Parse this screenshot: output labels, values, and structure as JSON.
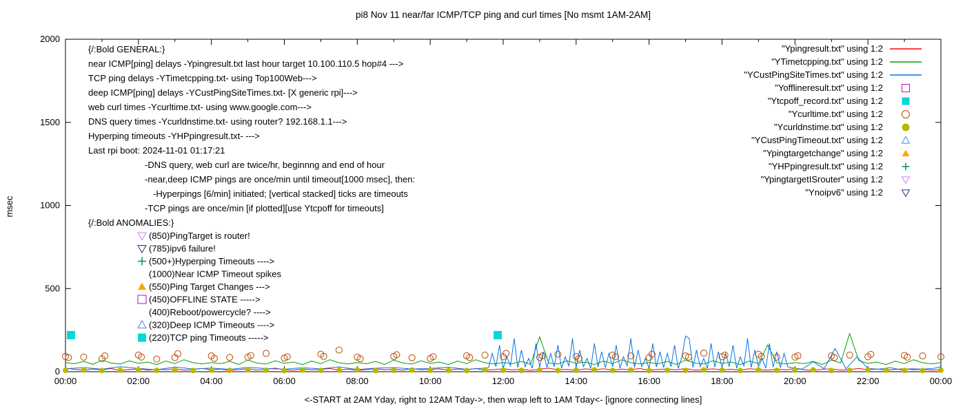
{
  "chart_data": {
    "type": "line",
    "title": "pi8 Nov 11  near/far ICMP/TCP ping and curl times [No msmt 1AM-2AM]",
    "xlabel": "<-START at 2AM Yday, right to 12AM Tday->, then wrap left to 1AM Tday<- [ignore connecting lines]",
    "ylabel": "msec",
    "xlim": [
      0,
      24
    ],
    "ylim": [
      0,
      2000
    ],
    "grid": false,
    "legend_position": "outside-top-right",
    "yticks": [
      0,
      500,
      1000,
      1500,
      2000
    ],
    "xticks": [
      "00:00",
      "02:00",
      "04:00",
      "06:00",
      "08:00",
      "10:00",
      "12:00",
      "14:00",
      "16:00",
      "18:00",
      "20:00",
      "22:00",
      "00:00"
    ],
    "series": [
      {
        "name": "Ypingresult.txt",
        "style": "line",
        "color": "#ff0000",
        "segments": [
          {
            "x0": 0,
            "dx": 0.25,
            "y": [
              22,
              14,
              9,
              16,
              11,
              19,
              8,
              13,
              17,
              10,
              15,
              12,
              18,
              9,
              14,
              20,
              11,
              16,
              8,
              13,
              18,
              10,
              15,
              21,
              12,
              9,
              17,
              11,
              14,
              19,
              10,
              16,
              8,
              13,
              18,
              12,
              15,
              9,
              20,
              11,
              14,
              17,
              10,
              16,
              12,
              19,
              9,
              13,
              18,
              11,
              15,
              8,
              16,
              21,
              12,
              14,
              9,
              17,
              11,
              18,
              10,
              15,
              13,
              19,
              8,
              14,
              16,
              11,
              20,
              9,
              13,
              17,
              12,
              15,
              10,
              18,
              14,
              9,
              16,
              11,
              19,
              12,
              8,
              15,
              17,
              10,
              13,
              20,
              11,
              16,
              9,
              14,
              18,
              12,
              15,
              10,
              13
            ]
          }
        ]
      },
      {
        "name": "YTimetcpping.txt",
        "style": "line",
        "color": "#00a000",
        "segments": [
          {
            "x0": 0,
            "dx": 0.25,
            "y": [
              55,
              48,
              62,
              44,
              70,
              52,
              46,
              66,
              50,
              58,
              43,
              64,
              49,
              72,
              54,
              47,
              55,
              48,
              62,
              44,
              70,
              52,
              46,
              66,
              50,
              58,
              43,
              64,
              49,
              72,
              54,
              47,
              55,
              48,
              62,
              44,
              70,
              52,
              46,
              66,
              50,
              58,
              43,
              64,
              49,
              72,
              54,
              47,
              55,
              48,
              62,
              44,
              210,
              52,
              46,
              66,
              50,
              58,
              43,
              64,
              49,
              72,
              54,
              47,
              55,
              48,
              62,
              44,
              70,
              52,
              46,
              66,
              50,
              58,
              43,
              64,
              49,
              160,
              54,
              47,
              55,
              48,
              62,
              44,
              70,
              52,
              230,
              66,
              50,
              58,
              43,
              64,
              49,
              72,
              54,
              47,
              55
            ]
          }
        ]
      },
      {
        "name": "YCustPingSiteTimes.txt",
        "style": "line",
        "color": "#0073e6",
        "segments": [
          {
            "x0": 0,
            "dx": 0.5,
            "y": [
              18,
              25,
              15,
              30,
              20,
              12,
              28,
              16,
              22,
              14,
              26,
              19,
              15,
              24,
              17,
              29,
              13,
              21,
              25,
              16,
              20,
              27,
              14,
              22
            ]
          },
          {
            "x0": 11.6,
            "dx": 0.1,
            "y": [
              25,
              110,
              30,
              160,
              20,
              90,
              35,
              200,
              25,
              130,
              30,
              80,
              20,
              170,
              28,
              120,
              25,
              110,
              30,
              160,
              20,
              90,
              35,
              200,
              25,
              130,
              30,
              80,
              20,
              170,
              28,
              120,
              25,
              110,
              30,
              160,
              20,
              90,
              35,
              200,
              25,
              130,
              30,
              80,
              20,
              170,
              28,
              120,
              25,
              110,
              30,
              160,
              20,
              90,
              215,
              200,
              25,
              130,
              30,
              80,
              20,
              170,
              28,
              120,
              25,
              110,
              30,
              160,
              20,
              90,
              35,
              200,
              25,
              130,
              30,
              80,
              20,
              170,
              28,
              120,
              25,
              110,
              30
            ]
          },
          {
            "x0": 19.9,
            "dx": 0.3,
            "y": [
              25,
              15,
              60,
              18,
              140,
              18,
              90,
              20,
              15,
              25,
              12,
              18,
              15,
              20
            ]
          }
        ],
        "points": [
          [
            24,
            30
          ]
        ]
      },
      {
        "name": "Yofflineresult.txt",
        "style": "square-open",
        "color": "#c800c8",
        "msize": 5,
        "points": []
      },
      {
        "name": "Ytcpoff_record.txt",
        "style": "square-filled",
        "color": "#00d9d9",
        "msize": 6,
        "points": [
          [
            0.15,
            220
          ],
          [
            11.85,
            220
          ]
        ]
      },
      {
        "name": "Ycurltime.txt",
        "style": "circle-open",
        "color": "#b84800",
        "msize": 4.5,
        "points": [
          [
            0,
            92
          ],
          [
            0.08,
            85
          ],
          [
            0.5,
            88
          ],
          [
            1,
            78
          ],
          [
            1.08,
            95
          ],
          [
            2,
            100
          ],
          [
            2.08,
            88
          ],
          [
            2.5,
            76
          ],
          [
            3,
            85
          ],
          [
            3.08,
            108
          ],
          [
            4,
            95
          ],
          [
            4.08,
            80
          ],
          [
            4.5,
            86
          ],
          [
            5,
            88
          ],
          [
            5.08,
            97
          ],
          [
            5.5,
            110
          ],
          [
            6,
            82
          ],
          [
            6.08,
            90
          ],
          [
            7,
            105
          ],
          [
            7.08,
            92
          ],
          [
            7.5,
            130
          ],
          [
            8,
            88
          ],
          [
            8.08,
            78
          ],
          [
            9,
            92
          ],
          [
            9.08,
            102
          ],
          [
            9.5,
            84
          ],
          [
            10,
            80
          ],
          [
            10.08,
            90
          ],
          [
            11,
            96
          ],
          [
            11.08,
            85
          ],
          [
            11.5,
            100
          ],
          [
            12,
            90
          ],
          [
            12.08,
            110
          ],
          [
            13,
            86
          ],
          [
            13.08,
            95
          ],
          [
            13.5,
            105
          ],
          [
            14,
            92
          ],
          [
            14.08,
            80
          ],
          [
            15,
            100
          ],
          [
            15.08,
            90
          ],
          [
            15.5,
            95
          ],
          [
            16,
            85
          ],
          [
            16.08,
            105
          ],
          [
            17,
            95
          ],
          [
            17.08,
            88
          ],
          [
            17.5,
            112
          ],
          [
            18,
            90
          ],
          [
            18.08,
            100
          ],
          [
            19,
            105
          ],
          [
            19.08,
            92
          ],
          [
            19.5,
            88
          ],
          [
            20,
            88
          ],
          [
            20.08,
            96
          ],
          [
            21,
            95
          ],
          [
            21.08,
            85
          ],
          [
            21.5,
            100
          ],
          [
            22,
            90
          ],
          [
            22.08,
            104
          ],
          [
            23,
            98
          ],
          [
            23.08,
            88
          ],
          [
            23.5,
            95
          ],
          [
            24,
            90
          ]
        ]
      },
      {
        "name": "Ycurldnstime.txt",
        "style": "circle-filled",
        "color": "#b8b800",
        "msize": 4,
        "segments": [
          {
            "x0": 0,
            "dx": 0.5,
            "y": [
              8,
              10,
              7,
              9,
              11,
              8,
              10,
              7,
              9,
              8,
              11,
              9,
              7,
              10,
              8,
              9,
              11,
              7,
              8,
              10,
              9,
              8,
              7,
              11,
              9,
              8,
              10,
              7,
              9,
              11,
              8,
              10,
              7,
              9,
              8,
              11,
              9,
              7,
              10,
              8,
              9,
              11,
              7,
              8,
              10,
              9,
              8,
              7,
              9
            ]
          }
        ]
      },
      {
        "name": "YCustPingTimeout.txt",
        "style": "triangle-up-open",
        "color": "#4488ee",
        "msize": 5,
        "points": []
      },
      {
        "name": "Ypingtargetchange",
        "style": "triangle-up-filled",
        "color": "#ffa500",
        "msize": 6,
        "points": []
      },
      {
        "name": "YHPpingresult.txt",
        "style": "plus",
        "color": "#009060",
        "msize": 5,
        "points": []
      },
      {
        "name": "YpingtargetISrouter",
        "style": "triangle-down-open",
        "color": "#cc80ff",
        "msize": 6,
        "points": []
      },
      {
        "name": "Ynoipv6",
        "style": "triangle-down-open",
        "color": "#203090",
        "msize": 6,
        "points": []
      }
    ]
  },
  "legend": [
    {
      "label": "\"Ypingresult.txt\" using 1:2",
      "series": 0
    },
    {
      "label": "\"YTimetcpping.txt\" using 1:2",
      "series": 1
    },
    {
      "label": "\"YCustPingSiteTimes.txt\" using 1:2",
      "series": 2
    },
    {
      "label": "\"Yofflineresult.txt\" using 1:2",
      "series": 3
    },
    {
      "label": "\"Ytcpoff_record.txt\" using 1:2",
      "series": 4
    },
    {
      "label": "\"Ycurltime.txt\" using 1:2",
      "series": 5
    },
    {
      "label": "\"Ycurldnstime.txt\" using 1:2",
      "series": 6
    },
    {
      "label": "\"YCustPingTimeout.txt\" using 1:2",
      "series": 7
    },
    {
      "label": "\"Ypingtargetchange\" using 1:2",
      "series": 8
    },
    {
      "label": "\"YHPpingresult.txt\" using 1:2",
      "series": 9
    },
    {
      "label": "\"YpingtargetISrouter\" using 1:2",
      "series": 10
    },
    {
      "label": "\"Ynoipv6\" using 1:2",
      "series": 11
    }
  ],
  "notes": {
    "general": [
      {
        "text": "{/:Bold GENERAL:}",
        "indent": 0
      },
      {
        "text": "near ICMP[ping] delays -Ypingresult.txt last hour target 10.100.110.5 hop#4 --->",
        "indent": 0
      },
      {
        "text": "TCP ping delays -YTimetcpping.txt- using Top100Web--->",
        "indent": 0
      },
      {
        "text": "deep ICMP[ping] delays -YCustPingSiteTimes.txt- [X generic rpi]--->",
        "indent": 0
      },
      {
        "text": "web curl times -Ycurltime.txt- using www.google.com--->",
        "indent": 0
      },
      {
        "text": "DNS query times -Ycurldnstime.txt- using router? 192.168.1.1--->",
        "indent": 0
      },
      {
        "text": "Hyperping timeouts -YHPpingresult.txt- --->",
        "indent": 0
      },
      {
        "text": "Last rpi boot: 2024-11-01 01:17:21",
        "indent": 0
      },
      {
        "text": "-DNS query, web curl are twice/hr, beginnng and end of hour",
        "indent": 82
      },
      {
        "text": "-near,deep ICMP pings are once/min until timeout[1000 msec], then:",
        "indent": 82
      },
      {
        "text": "-Hyperpings [6/min] initiated; [vertical stacked] ticks are timeouts",
        "indent": 94
      },
      {
        "text": "-TCP pings are once/min [if plotted][use Ytcpoff for timeouts]",
        "indent": 82
      }
    ],
    "anomalies_header": "{/:Bold ANOMALIES:}",
    "anomalies": [
      {
        "marker": "triangle-down-open",
        "color": "#cc80ff",
        "text": "(850)PingTarget is router!"
      },
      {
        "marker": "triangle-down-open",
        "color": "#203090",
        "text": "(785)ipv6 failure!"
      },
      {
        "marker": "plus",
        "color": "#009060",
        "text": "(500+)Hyperping Timeouts ---->"
      },
      {
        "marker": null,
        "color": null,
        "text": "(1000)Near ICMP Timeout spikes"
      },
      {
        "marker": "triangle-up-filled",
        "color": "#ffa500",
        "text": "(550)Ping Target Changes --->"
      },
      {
        "marker": "square-open",
        "color": "#c800c8",
        "text": "(450)OFFLINE STATE ----->"
      },
      {
        "marker": null,
        "color": null,
        "text": "(400)Reboot/powercycle? ---->"
      },
      {
        "marker": "triangle-up-open",
        "color": "#4488ee",
        "text": "(320)Deep ICMP Timeouts ---->"
      },
      {
        "marker": "square-filled",
        "color": "#00d9d9",
        "text": "(220)TCP ping Timeouts ----->"
      }
    ]
  }
}
